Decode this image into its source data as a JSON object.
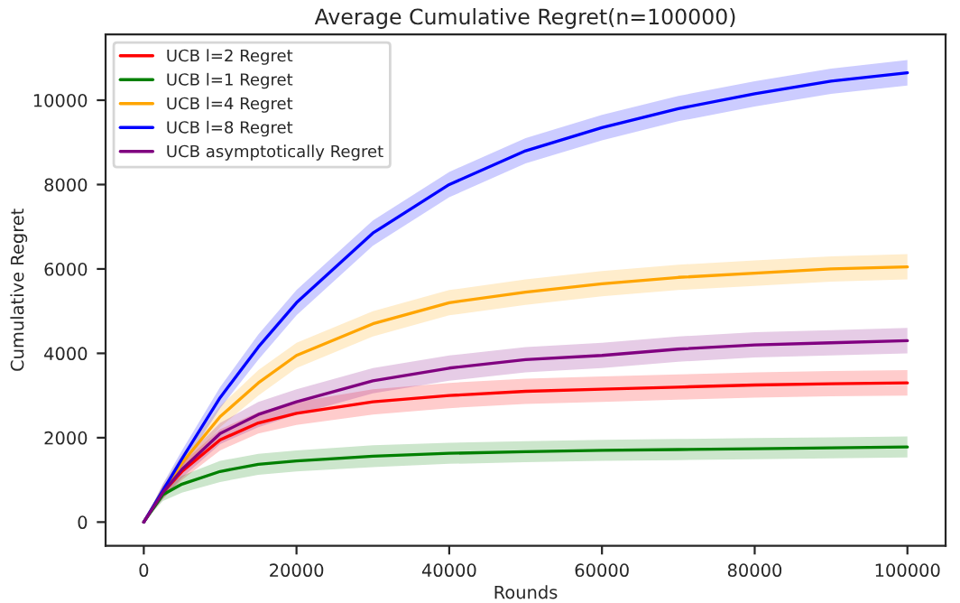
{
  "chart_data": {
    "type": "line",
    "title": "Average Cumulative Regret(n=100000)",
    "xlabel": "Rounds",
    "ylabel": "Cumulative Regret",
    "x": [
      0,
      2500,
      5000,
      10000,
      15000,
      20000,
      30000,
      40000,
      50000,
      60000,
      70000,
      80000,
      90000,
      100000
    ],
    "xlim": [
      -5000,
      105000
    ],
    "xticks": [
      0,
      20000,
      40000,
      60000,
      80000,
      100000
    ],
    "ylim": [
      -560,
      11560
    ],
    "yticks": [
      0,
      2000,
      4000,
      6000,
      8000,
      10000
    ],
    "grid": false,
    "legend": "top left",
    "marker": "none",
    "line_style": "solid",
    "series": [
      {
        "name": "UCB l=2 Regret",
        "color": "#ff0000",
        "values": [
          0,
          700,
          1200,
          1950,
          2350,
          2580,
          2850,
          3000,
          3100,
          3150,
          3200,
          3250,
          3280,
          3300
        ],
        "lower": [
          0,
          550,
          1000,
          1700,
          2100,
          2300,
          2550,
          2700,
          2800,
          2850,
          2900,
          2950,
          2980,
          3000
        ],
        "upper": [
          0,
          850,
          1400,
          2200,
          2600,
          2850,
          3150,
          3300,
          3400,
          3450,
          3500,
          3550,
          3580,
          3600
        ]
      },
      {
        "name": "UCB l=1 Regret",
        "color": "#008000",
        "values": [
          0,
          650,
          900,
          1200,
          1370,
          1450,
          1560,
          1630,
          1670,
          1700,
          1720,
          1740,
          1760,
          1780
        ],
        "lower": [
          0,
          500,
          700,
          950,
          1120,
          1200,
          1300,
          1380,
          1420,
          1450,
          1470,
          1490,
          1510,
          1530
        ],
        "upper": [
          0,
          800,
          1100,
          1450,
          1620,
          1700,
          1820,
          1880,
          1920,
          1950,
          1970,
          1990,
          2010,
          2030
        ]
      },
      {
        "name": "UCB l=4 Regret",
        "color": "#ffa500",
        "values": [
          0,
          750,
          1400,
          2500,
          3300,
          3950,
          4700,
          5200,
          5450,
          5650,
          5800,
          5900,
          6000,
          6050
        ],
        "lower": [
          0,
          600,
          1200,
          2250,
          3000,
          3650,
          4400,
          4900,
          5150,
          5350,
          5500,
          5600,
          5700,
          5750
        ],
        "upper": [
          0,
          900,
          1600,
          2750,
          3600,
          4250,
          5000,
          5500,
          5750,
          5950,
          6100,
          6200,
          6300,
          6350
        ]
      },
      {
        "name": "UCB l=8 Regret",
        "color": "#0000ff",
        "values": [
          0,
          750,
          1500,
          2950,
          4150,
          5200,
          6850,
          8000,
          8800,
          9350,
          9800,
          10150,
          10450,
          10650
        ],
        "lower": [
          0,
          600,
          1300,
          2700,
          3850,
          4900,
          6550,
          7700,
          8500,
          9050,
          9500,
          9850,
          10150,
          10350
        ],
        "upper": [
          0,
          900,
          1700,
          3200,
          4450,
          5500,
          7150,
          8300,
          9100,
          9650,
          10100,
          10450,
          10750,
          10950
        ]
      },
      {
        "name": "UCB asymptotically Regret",
        "color": "#800080",
        "values": [
          0,
          700,
          1250,
          2100,
          2550,
          2850,
          3350,
          3650,
          3850,
          3950,
          4100,
          4200,
          4250,
          4300
        ],
        "lower": [
          0,
          550,
          1050,
          1850,
          2250,
          2550,
          3050,
          3350,
          3550,
          3650,
          3800,
          3900,
          3950,
          4000
        ],
        "upper": [
          0,
          850,
          1450,
          2350,
          2850,
          3150,
          3650,
          3950,
          4150,
          4250,
          4400,
          4500,
          4550,
          4600
        ]
      }
    ]
  }
}
